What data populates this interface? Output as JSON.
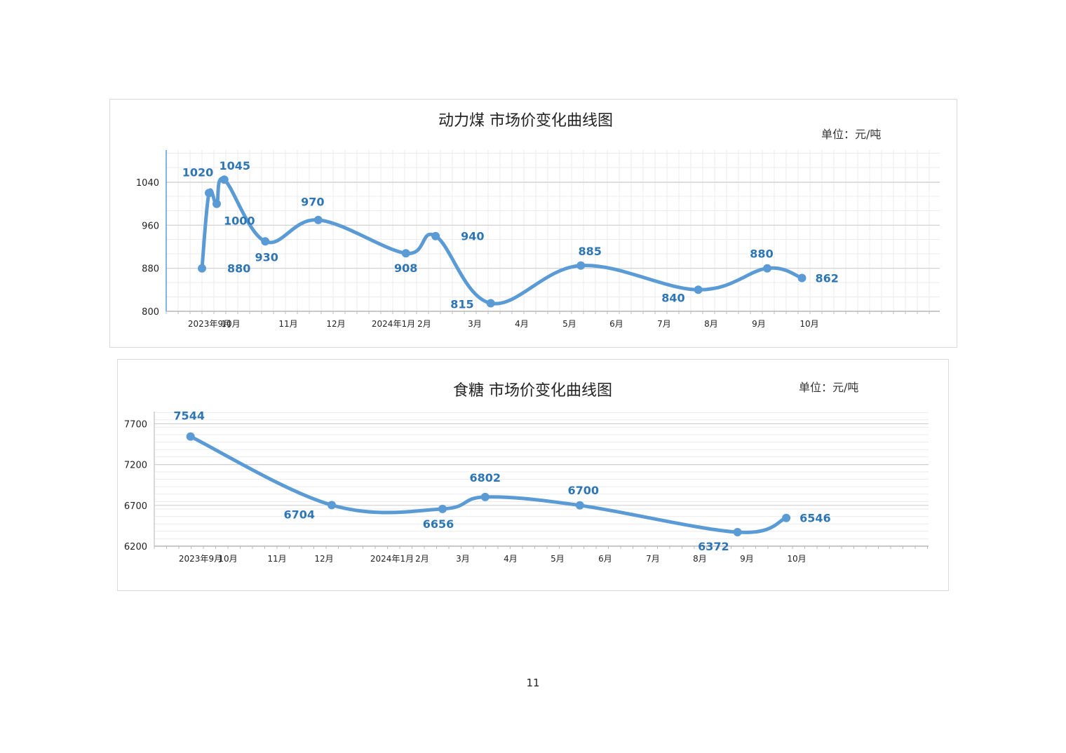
{
  "page_number": "11",
  "chart_data": [
    {
      "type": "line",
      "title": "动力煤  市场价变化曲线图",
      "unit": "单位：元/吨",
      "xlabel": "",
      "ylabel": "",
      "ylim": [
        800,
        1100
      ],
      "yticks": [
        "800",
        "880",
        "960",
        "1040"
      ],
      "xticks": [
        "2023年9月",
        "10月",
        "11月",
        "12月",
        "2024年1月",
        "2月",
        "3月",
        "4月",
        "5月",
        "6月",
        "7月",
        "8月",
        "9月",
        "10月"
      ],
      "grid": true,
      "color": "#5b9bd5",
      "series": [
        {
          "x": [
            "2023-09-05",
            "2023-09-15",
            "2023-09-26",
            "2023-10-07",
            "2023-11-04",
            "2023-12-05",
            "2024-01-29",
            "2024-02-22",
            "2024-03-27",
            "2024-05-24",
            "2024-08-08",
            "2024-09-21",
            "2024-10-12"
          ],
          "values": [
            880,
            1020,
            1000,
            1045,
            930,
            970,
            908,
            940,
            815,
            885,
            840,
            880,
            862
          ],
          "labels": [
            "880",
            "1020",
            "1000",
            "1045",
            "930",
            "970",
            "908",
            "940",
            "815",
            "885",
            "840",
            "880",
            "862"
          ]
        }
      ]
    },
    {
      "type": "line",
      "title": "食糖  市场价变化曲线图",
      "unit": "单位：元/吨",
      "xlabel": "",
      "ylabel": "",
      "ylim": [
        6200,
        7850
      ],
      "yticks": [
        "6200",
        "6700",
        "7200",
        "7700"
      ],
      "xticks": [
        "2023年9月",
        "10月",
        "11月",
        "12月",
        "2024年1月",
        "2月",
        "3月",
        "4月",
        "5月",
        "6月",
        "7月",
        "8月",
        "9月",
        "10月"
      ],
      "grid": true,
      "color": "#5b9bd5",
      "series": [
        {
          "x": [
            "2023-09-05",
            "2023-12-20",
            "2024-03-01",
            "2024-03-31",
            "2024-05-31",
            "2024-09-10",
            "2024-10-10"
          ],
          "values": [
            7544,
            6704,
            6656,
            6802,
            6700,
            6372,
            6546
          ],
          "labels": [
            "7544",
            "6704",
            "6656",
            "6802",
            "6700",
            "6372",
            "6546"
          ]
        }
      ]
    }
  ]
}
